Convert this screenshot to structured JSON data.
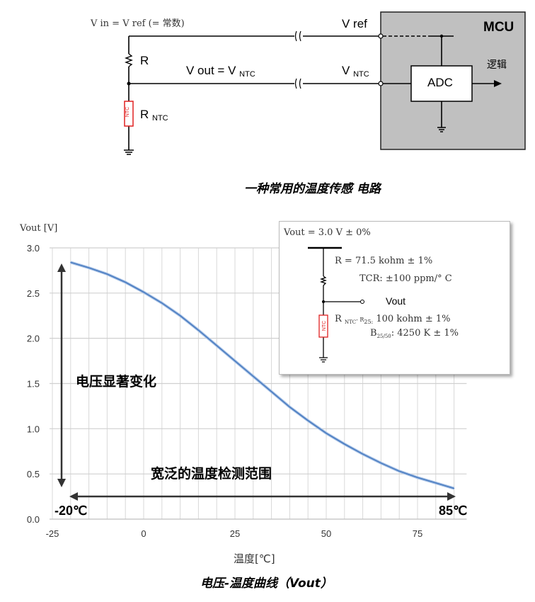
{
  "circuit": {
    "vin_label": "V in = V ref (= 常数)",
    "r_label": "R",
    "rntc_label": "R",
    "rntc_sub": "NTC",
    "vout_label": "V out = V",
    "vout_sub": "NTC",
    "vref_pin": "V ref",
    "vntc_pin": "V",
    "vntc_pin_sub": "NTC",
    "mcu_label": "MCU",
    "adc_label": "ADC",
    "logic_label": "逻辑",
    "ntc_component_text": "NTC",
    "caption": "一种常用的温度传感 电路",
    "mcu_fill": "#c0c0c0",
    "ntc_color": "#e02020"
  },
  "inset": {
    "vout_line": "Vout = 3.0 V ± 0%",
    "r_line": "R = 71.5 kohm ± 1%",
    "tcr_line": "TCR: ±100 ppm/° C",
    "vout_node": "Vout",
    "rntc_prefix": "R",
    "rntc_sub": "NTC",
    "rntc_mid": "- R",
    "r25_sub": "25:",
    "rntc_value": " 100 kohm ± 1%",
    "b_prefix": "B",
    "b_sub": "25/50",
    "b_value": ": 4250 K ± 1%",
    "ntc_component_text": "NTC"
  },
  "annotations": {
    "voltage_change": "电压显著变化",
    "wide_range": "宽泛的温度检测范围",
    "min_temp": "-20℃",
    "max_temp": "85℃"
  },
  "chart_data": {
    "type": "line",
    "title": "",
    "caption": "电压-温度曲线（Vout）",
    "xlabel": "温度[℃]",
    "ylabel": "Vout [V]",
    "xlim": [
      -25,
      90
    ],
    "ylim": [
      0,
      3.0
    ],
    "xticks": [
      "-25",
      "0",
      "25",
      "50",
      "75"
    ],
    "yticks": [
      "0.0",
      "0.5",
      "1.0",
      "1.5",
      "2.0",
      "2.5",
      "3.0"
    ],
    "grid": true,
    "line_color": "#4a7cc0",
    "x": [
      -20,
      -15,
      -10,
      -5,
      0,
      5,
      10,
      15,
      20,
      25,
      30,
      35,
      40,
      45,
      50,
      55,
      60,
      65,
      70,
      75,
      80,
      85
    ],
    "y": [
      2.84,
      2.78,
      2.71,
      2.62,
      2.51,
      2.39,
      2.25,
      2.09,
      1.92,
      1.75,
      1.58,
      1.41,
      1.24,
      1.09,
      0.95,
      0.83,
      0.72,
      0.62,
      0.53,
      0.46,
      0.4,
      0.34
    ]
  }
}
